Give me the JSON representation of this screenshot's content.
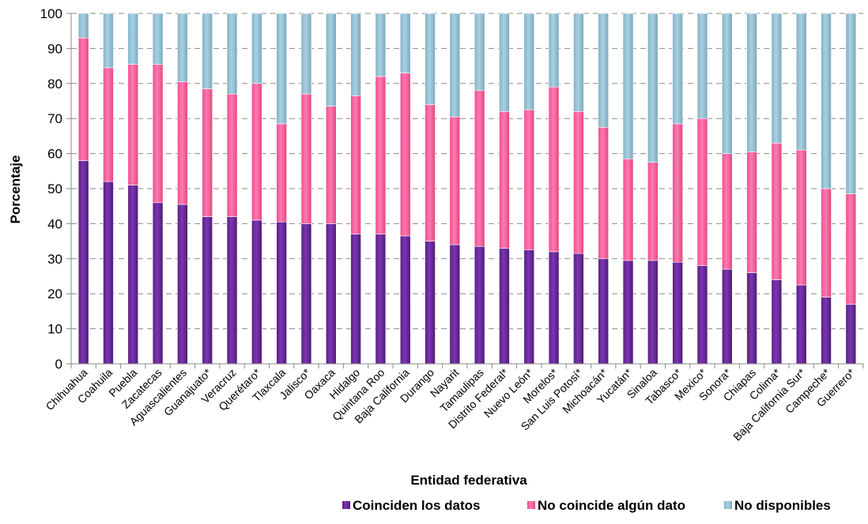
{
  "chart_data": {
    "type": "bar",
    "stacked": true,
    "xlabel": "Entidad federativa",
    "ylabel": "Porcentaje",
    "ylim": [
      0,
      100
    ],
    "yticks": [
      0,
      10,
      20,
      30,
      40,
      50,
      60,
      70,
      80,
      90,
      100
    ],
    "grid": "horizontal dashed",
    "legend": "bottom-right",
    "categories": [
      "Chihuahua",
      "Coahuila",
      "Puebla",
      "Zacatecas",
      "Aguascalientes",
      "Guanajuato*",
      "Veracruz",
      "Querétaro*",
      "Tlaxcala",
      "Jalisco*",
      "Oaxaca",
      "Hidalgo",
      "Quintana Roo",
      "Baja California",
      "Durango",
      "Nayarit",
      "Tamaulipas",
      "Distrito Federal*",
      "Nuevo León*",
      "Morelos*",
      "San Luis Potosí*",
      "Michoacán*",
      "Yucatán*",
      "Sinaloa",
      "Tabasco*",
      "Mexico*",
      "Sonora*",
      "Chiapas",
      "Colima*",
      "Baja California Sur*",
      "Campeche*",
      "Guerrero*"
    ],
    "series": [
      {
        "name": "Coinciden los datos",
        "color": "#7030a0",
        "values": [
          58,
          52,
          51,
          46,
          45.5,
          42,
          42,
          41,
          40.5,
          40,
          40,
          37,
          37,
          36.5,
          35,
          34,
          33.5,
          33,
          32.5,
          32,
          31.5,
          30,
          29.5,
          29.5,
          29,
          28,
          27,
          26,
          24,
          22.5,
          19,
          17
        ]
      },
      {
        "name": "No coincide algún dato",
        "color": "#ff66a3",
        "values": [
          35,
          32.5,
          34.5,
          39.5,
          35,
          36.5,
          35,
          39,
          28,
          37,
          33.5,
          39.5,
          45,
          46.5,
          39,
          36.5,
          44.5,
          39,
          40,
          47,
          40.5,
          37.5,
          29,
          28,
          39.5,
          42,
          33,
          34.5,
          39,
          38.5,
          31,
          31.5
        ]
      },
      {
        "name": "No disponibles",
        "color": "#93c1d4",
        "values": [
          7,
          15.5,
          14.5,
          14.5,
          19.5,
          21.5,
          23,
          20,
          31.5,
          23,
          26.5,
          23.5,
          18,
          17,
          26,
          29.5,
          22,
          28,
          27.5,
          21,
          28,
          32.5,
          41.5,
          42.5,
          31.5,
          30,
          40,
          39.5,
          37,
          39,
          50,
          51.5
        ]
      }
    ]
  }
}
